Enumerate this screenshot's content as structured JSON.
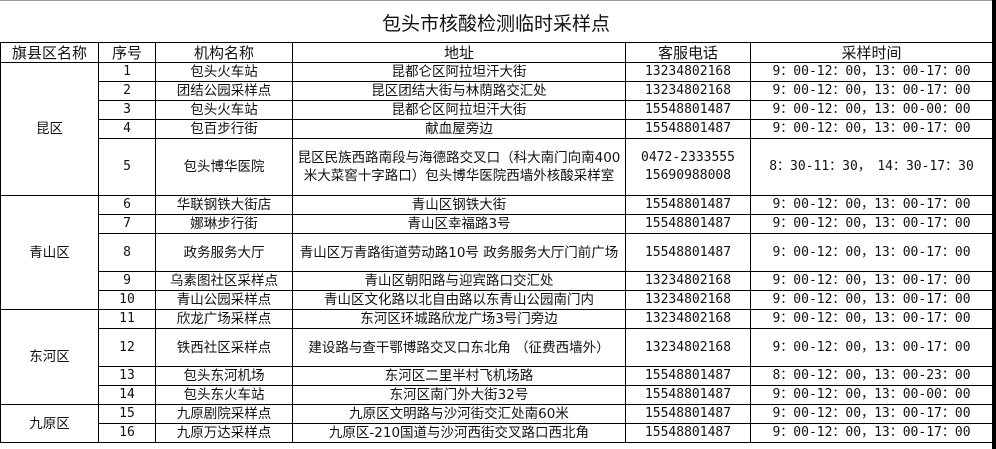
{
  "title": "包头市核酸检测临时采样点",
  "headers": [
    "旗县区名称",
    "序号",
    "机构名称",
    "地址",
    "客服电话",
    "采样时间"
  ],
  "districts": [
    {
      "name": "昆区",
      "rows": [
        {
          "no": "1",
          "org": "包头火车站",
          "addr": "昆都仑区阿拉坦汗大街",
          "phone": "13234802168",
          "time": "9：00-12：00，13：00-17：00"
        },
        {
          "no": "2",
          "org": "团结公园采样点",
          "addr": "昆区团结大街与林荫路交汇处",
          "phone": "13234802168",
          "time": "9：00-12：00，13：00-17：00"
        },
        {
          "no": "3",
          "org": "包头火车站",
          "addr": "昆都仑区阿拉坦汗大街",
          "phone": "15548801487",
          "time": "9：00-12：00，13：00-00：00"
        },
        {
          "no": "4",
          "org": "包百步行街",
          "addr": "献血屋旁边",
          "phone": "15548801487",
          "time": "9：00-12：00，13：00-17：00"
        },
        {
          "no": "5",
          "org": "包头博华医院",
          "addr": "昆区民族西路南段与海德路交叉口（科大南门向南400米大菜窖十字路口）包头博华医院西墙外核酸采样室",
          "phone": "0472-2333555 15690988008",
          "time": "8：30-11：30，　14：30-17：30"
        }
      ]
    },
    {
      "name": "青山区",
      "rows": [
        {
          "no": "6",
          "org": "华联钢铁大街店",
          "addr": "青山区钢铁大街",
          "phone": "15548801487",
          "time": "9：00-12：00，13：00-17：00"
        },
        {
          "no": "7",
          "org": "娜琳步行街",
          "addr": "青山区幸福路3号",
          "phone": "15548801487",
          "time": "9：00-12：00，13：00-17：00"
        },
        {
          "no": "8",
          "org": "政务服务大厅",
          "addr": "青山区万青路街道劳动路10号 政务服务大厅门前广场",
          "phone": "15548801487",
          "time": "9：00-12：00，13：00-17：00"
        },
        {
          "no": "9",
          "org": "乌素图社区采样点",
          "addr": "青山区朝阳路与迎宾路口交汇处",
          "phone": "13234802168",
          "time": "9：00-12：00，13：00-17：00"
        },
        {
          "no": "10",
          "org": "青山公园采样点",
          "addr": "青山区文化路以北自由路以东青山公园南门内",
          "phone": "13234802168",
          "time": "9：00-12：00，13：00-17：00"
        }
      ]
    },
    {
      "name": "东河区",
      "rows": [
        {
          "no": "11",
          "org": "欣龙广场采样点",
          "addr": "东河区环城路欣龙广场3号门旁边",
          "phone": "13234802168",
          "time": "9：00-12：00，13：00-17：00"
        },
        {
          "no": "12",
          "org": "铁西社区采样点",
          "addr": "建设路与查干鄂博路交叉口东北角 （征费西墙外）",
          "phone": "13234802168",
          "time": "9：00-12：00，13：00-17：00"
        },
        {
          "no": "13",
          "org": "包头东河机场",
          "addr": "东河区二里半村飞机场路",
          "phone": "15548801487",
          "time": "8：00-12：00，13：00-23：00"
        },
        {
          "no": "14",
          "org": "包头东火车站",
          "addr": "东河区南门外大街32号",
          "phone": "15548801487",
          "time": "9：00-12：00，13：00-00：00"
        }
      ]
    },
    {
      "name": "九原区",
      "rows": [
        {
          "no": "15",
          "org": "九原剧院采样点",
          "addr": "九原区文明路与沙河街交汇处南60米",
          "phone": "15548801487",
          "time": "9：00-12：00，13：00-17：00"
        },
        {
          "no": "16",
          "org": "九原万达采样点",
          "addr": "九原区-210国道与沙河西街交叉路口西北角",
          "phone": "15548801487",
          "time": "9：00-12：00，13：00-17：00"
        }
      ]
    }
  ]
}
